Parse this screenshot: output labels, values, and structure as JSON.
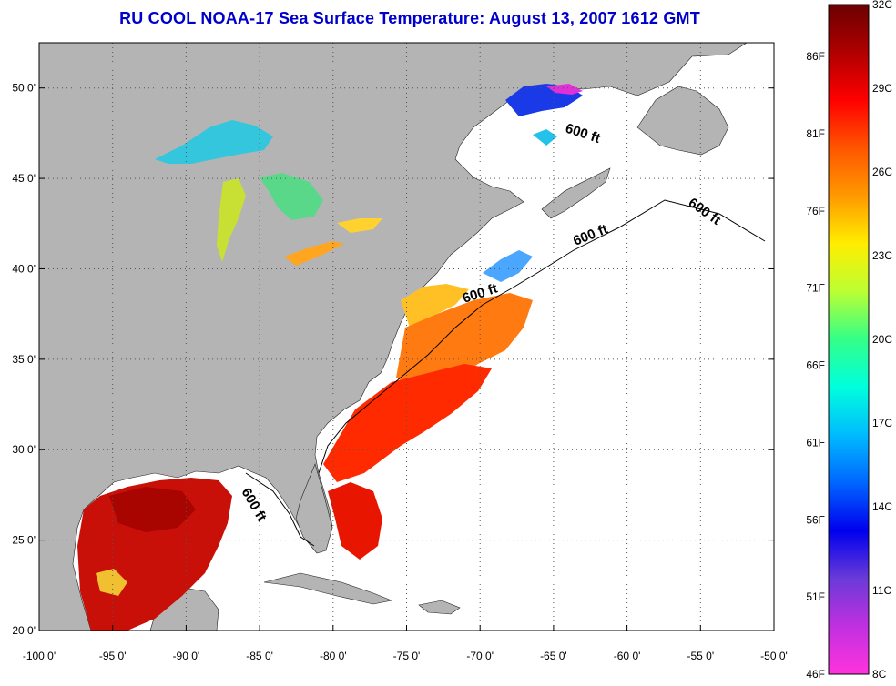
{
  "title": "RU COOL  NOAA-17  Sea Surface Temperature:  August 13, 2007 1612 GMT",
  "map": {
    "lon_range": [
      -100,
      -50
    ],
    "lat_range": [
      20,
      52.5
    ],
    "lon_ticks": [
      "-100 0'",
      "-95 0'",
      "-90 0'",
      "-85 0'",
      "-80 0'",
      "-75 0'",
      "-70 0'",
      "-65 0'",
      "-60 0'",
      "-55 0'",
      "-50 0'"
    ],
    "lat_ticks": [
      "20 0'",
      "25 0'",
      "30 0'",
      "35 0'",
      "40 0'",
      "45 0'",
      "50 0'"
    ],
    "contour_labels": [
      "600 ft",
      "600 ft",
      "600 ft",
      "600 ft",
      "600 ft"
    ],
    "colors": {
      "land": "#b4b4b4",
      "ocean_nodata": "#ffffff",
      "grid": "#555555"
    }
  },
  "colorbar": {
    "celsius_labels": [
      "32C",
      "29C",
      "26C",
      "23C",
      "20C",
      "17C",
      "14C",
      "11C",
      "8C"
    ],
    "fahrenheit_labels": [
      "86F",
      "81F",
      "76F",
      "71F",
      "66F",
      "61F",
      "56F",
      "51F",
      "46F"
    ],
    "gradient": [
      "#6b0000",
      "#b00000",
      "#ff0000",
      "#ff5500",
      "#ff9900",
      "#ffee00",
      "#bbff33",
      "#33ff88",
      "#00ffdd",
      "#00bbff",
      "#0066ff",
      "#0000ee",
      "#6a3ad8",
      "#c030e0",
      "#ff33dd"
    ]
  }
}
